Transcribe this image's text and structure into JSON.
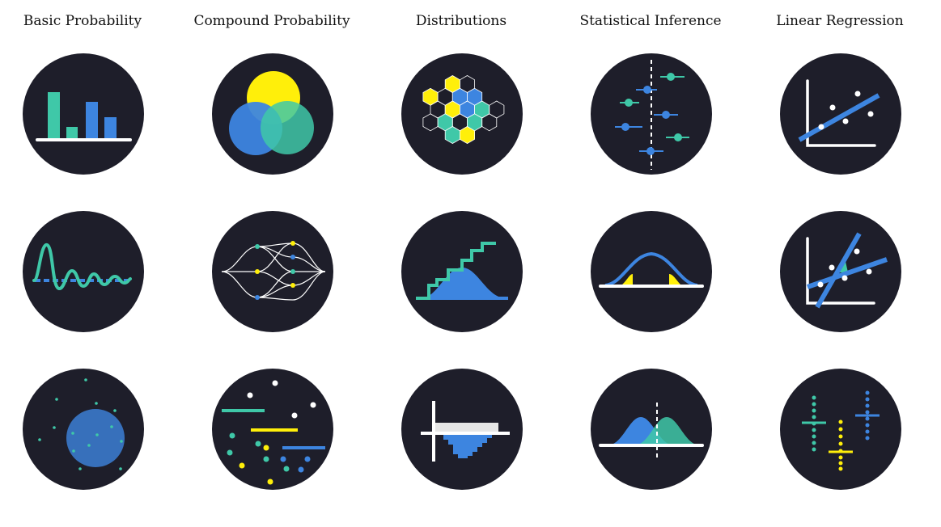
{
  "columns": [
    {
      "title": "Basic Probability"
    },
    {
      "title": "Compound Probability"
    },
    {
      "title": "Distributions"
    },
    {
      "title": "Statistical Inference"
    },
    {
      "title": "Linear Regression"
    }
  ],
  "colors": {
    "circle": "#1e1e2a",
    "teal": "#3fc8a8",
    "blue": "#3d85e0",
    "yellow": "#ffef0a",
    "white": "#ffffff"
  }
}
